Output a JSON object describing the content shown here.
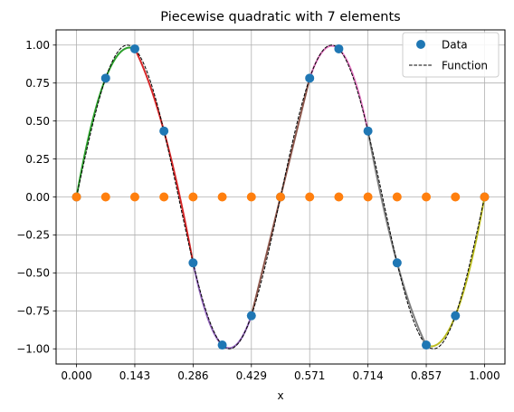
{
  "chart_data": {
    "type": "line",
    "title": "Piecewise quadratic with 7 elements",
    "xlabel": "x",
    "ylabel": "",
    "xlim": [
      -0.05,
      1.05
    ],
    "ylim": [
      -1.1,
      1.1
    ],
    "grid": true,
    "legend": {
      "placement": "top-right",
      "entries": [
        {
          "label": "Data",
          "marker": "circle",
          "color": "#1f77b4"
        },
        {
          "label": "Function",
          "style": "dashed",
          "color": "#000000"
        }
      ]
    },
    "x_ticks": [
      0,
      0.142857,
      0.285714,
      0.428571,
      0.571429,
      0.714286,
      0.857143,
      1
    ],
    "x_tick_labels": [
      "0.000",
      "0.143",
      "0.286",
      "0.429",
      "0.571",
      "0.714",
      "0.857",
      "1.000"
    ],
    "y_ticks": [
      1.0,
      0.75,
      0.5,
      0.25,
      0.0,
      -0.25,
      -0.5,
      -0.75,
      -1.0
    ],
    "y_tick_labels": [
      "1.00",
      "0.75",
      "0.50",
      "0.25",
      "0.00",
      "−0.25",
      "−0.50",
      "−0.75",
      "−1.00"
    ],
    "function": {
      "formula": "sin(4*pi*x)",
      "samples": 200,
      "color": "#000000",
      "style": "dashed"
    },
    "data_series": {
      "name": "Data",
      "color": "#1f77b4",
      "x": [
        0,
        0.071429,
        0.142857,
        0.214286,
        0.285714,
        0.357143,
        0.428571,
        0.5,
        0.571429,
        0.642857,
        0.714286,
        0.785714,
        0.857143,
        0.928571,
        1.0
      ],
      "y": [
        0,
        0.782,
        0.975,
        0.434,
        -0.434,
        -0.975,
        -0.782,
        0,
        0.782,
        0.975,
        0.434,
        -0.434,
        -0.975,
        -0.782,
        0
      ]
    },
    "node_series": {
      "color": "#ff7f0e",
      "x": [
        0,
        0.071429,
        0.142857,
        0.214286,
        0.285714,
        0.357143,
        0.428571,
        0.5,
        0.571429,
        0.642857,
        0.714286,
        0.785714,
        0.857143,
        0.928571,
        1.0
      ],
      "y": [
        0,
        0,
        0,
        0,
        0,
        0,
        0,
        0,
        0,
        0,
        0,
        0,
        0,
        0,
        0
      ]
    },
    "element_colors": [
      "#2ca02c",
      "#d62728",
      "#9467bd",
      "#8c564b",
      "#e377c2",
      "#7f7f7f",
      "#bcbd22"
    ]
  }
}
